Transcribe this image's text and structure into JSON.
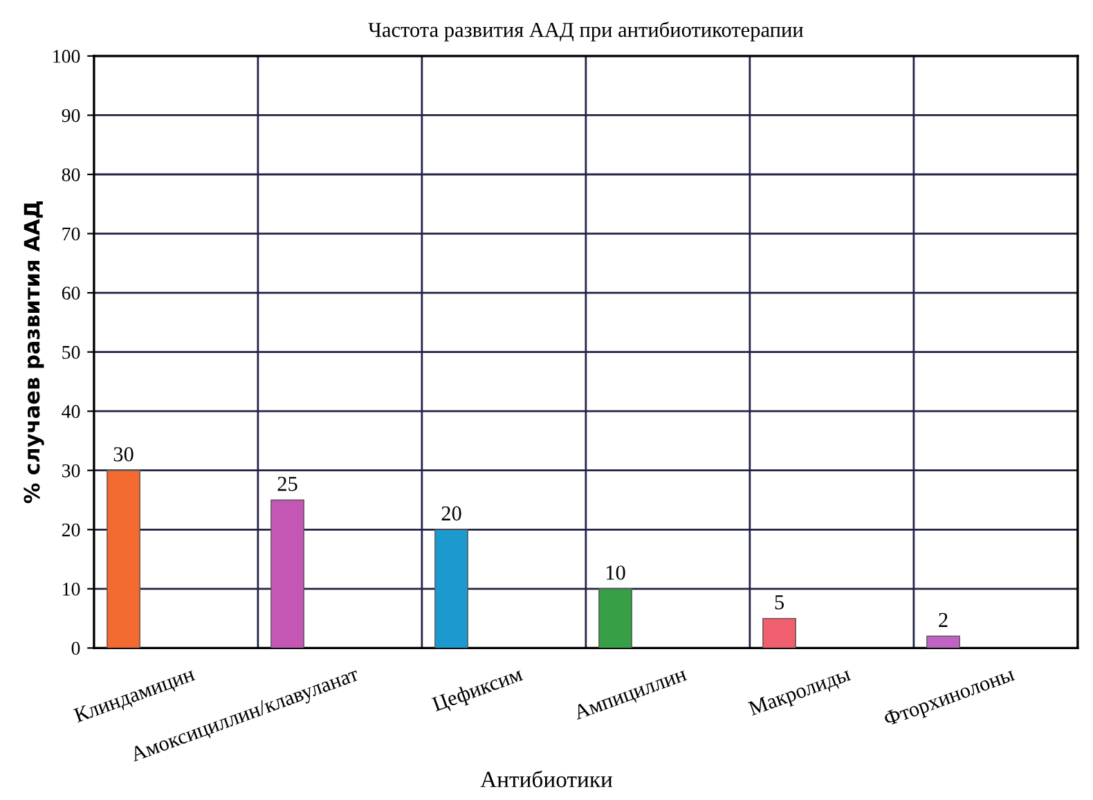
{
  "chart_data": {
    "type": "bar",
    "title": "Частота развития ААД при антибиотикотерапии",
    "xlabel": "Антибиотики",
    "ylabel": "% случаев развития ААД",
    "categories": [
      "Клиндамицин",
      "Амоксициллин/клавуланат",
      "Цефиксим",
      "Ампициллин",
      "Макролиды",
      "Фторхинолоны"
    ],
    "values": [
      30,
      25,
      20,
      10,
      5,
      2
    ],
    "colors": [
      "#f26a30",
      "#c457b4",
      "#1c9ad0",
      "#37a046",
      "#ef5f6e",
      "#c163c4"
    ],
    "ylim": [
      0,
      100
    ],
    "yticks": [
      0,
      10,
      20,
      30,
      40,
      50,
      60,
      70,
      80,
      90,
      100
    ],
    "grid": true,
    "data_labels": true
  }
}
